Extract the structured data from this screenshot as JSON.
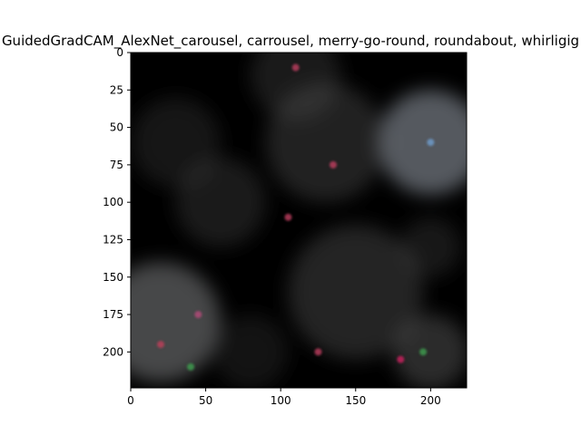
{
  "chart_data": {
    "type": "heatmap",
    "title": "GuidedGradCAM_AlexNet_carousel, carrousel, merry-go-round, roundabout, whirligig",
    "xlabel": "",
    "ylabel": "",
    "xlim": [
      0,
      224
    ],
    "ylim": [
      224,
      0
    ],
    "xticks": [
      0,
      50,
      100,
      150,
      200
    ],
    "yticks": [
      0,
      25,
      50,
      75,
      100,
      125,
      150,
      175,
      200
    ],
    "grid": false,
    "image": {
      "description_values": "grayscale saliency map with faint colored edge speckles",
      "background_color": "#000000",
      "bright_regions": [
        {
          "cx": 200,
          "cy": 60,
          "r": 35,
          "intensity": 0.55,
          "color": "#9aa3ad"
        },
        {
          "cx": 20,
          "cy": 180,
          "r": 40,
          "intensity": 0.5,
          "color": "#8e8f92"
        },
        {
          "cx": 130,
          "cy": 60,
          "r": 40,
          "intensity": 0.3,
          "color": "#6c6c6c"
        },
        {
          "cx": 60,
          "cy": 100,
          "r": 30,
          "intensity": 0.28,
          "color": "#5c5c5c"
        },
        {
          "cx": 30,
          "cy": 60,
          "r": 30,
          "intensity": 0.25,
          "color": "#555555"
        },
        {
          "cx": 150,
          "cy": 160,
          "r": 45,
          "intensity": 0.32,
          "color": "#707070"
        },
        {
          "cx": 200,
          "cy": 200,
          "r": 25,
          "intensity": 0.35,
          "color": "#7a7a7a"
        },
        {
          "cx": 110,
          "cy": 15,
          "r": 30,
          "intensity": 0.28,
          "color": "#606060"
        },
        {
          "cx": 200,
          "cy": 130,
          "r": 20,
          "intensity": 0.25,
          "color": "#5a5a5a"
        },
        {
          "cx": 80,
          "cy": 200,
          "r": 25,
          "intensity": 0.22,
          "color": "#505050"
        }
      ],
      "color_speckles": [
        {
          "cx": 200,
          "cy": 60,
          "color": "#6f9fd0"
        },
        {
          "cx": 135,
          "cy": 75,
          "color": "#c04060"
        },
        {
          "cx": 105,
          "cy": 110,
          "color": "#c04060"
        },
        {
          "cx": 45,
          "cy": 175,
          "color": "#b84a7a"
        },
        {
          "cx": 180,
          "cy": 205,
          "color": "#d02060"
        },
        {
          "cx": 195,
          "cy": 200,
          "color": "#40a050"
        },
        {
          "cx": 20,
          "cy": 195,
          "color": "#c0405a"
        },
        {
          "cx": 40,
          "cy": 210,
          "color": "#40a050"
        },
        {
          "cx": 110,
          "cy": 10,
          "color": "#c04060"
        },
        {
          "cx": 125,
          "cy": 200,
          "color": "#c04060"
        }
      ]
    }
  }
}
